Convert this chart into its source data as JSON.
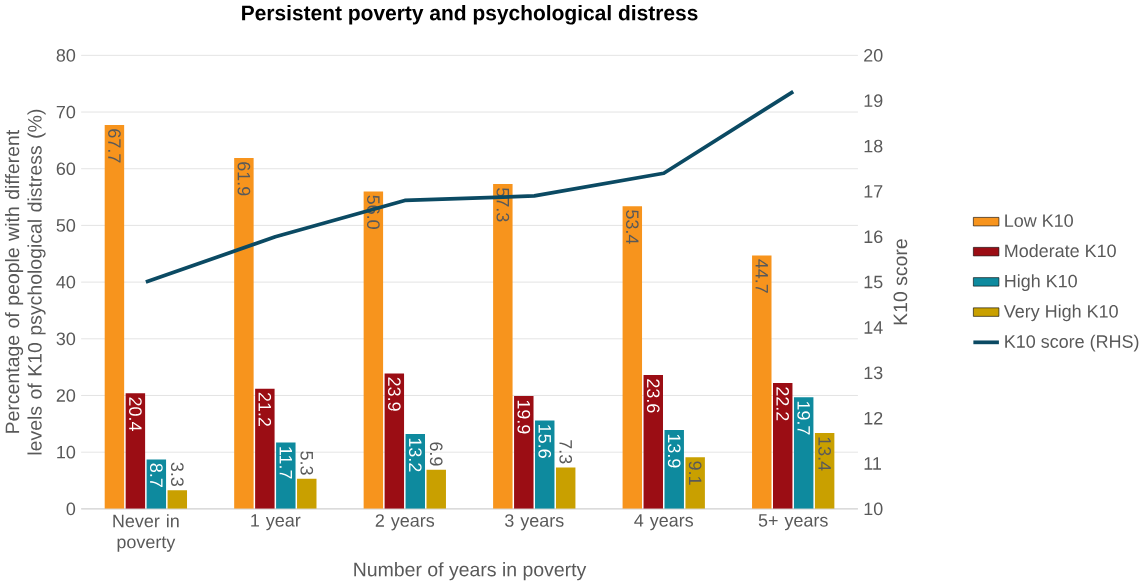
{
  "chart_data": {
    "type": "bar",
    "title": "Persistent poverty and psychological distress",
    "xlabel": "Number of years in poverty",
    "ylabel": "Percentage of people with different levels of K10 psychological distress (%)",
    "y2label": "K10 score",
    "categories": [
      "Never in poverty",
      "1 year",
      "2 years",
      "3 years",
      "4 years",
      "5+ years"
    ],
    "series": [
      {
        "name": "Low K10",
        "color": "#f7941d",
        "values": [
          67.7,
          61.9,
          56.0,
          57.3,
          53.4,
          44.7
        ],
        "value_labels": [
          "67.7",
          "61.9",
          "56.0",
          "57.3",
          "53.4",
          "44.7"
        ]
      },
      {
        "name": "Moderate K10",
        "color": "#9b0d14",
        "values": [
          20.4,
          21.2,
          23.9,
          19.9,
          23.6,
          22.2
        ],
        "value_labels": [
          "20.4",
          "21.2",
          "23.9",
          "19.9",
          "23.6",
          "22.2"
        ]
      },
      {
        "name": "High K10",
        "color": "#0e8a9e",
        "values": [
          8.7,
          11.7,
          13.2,
          15.6,
          13.9,
          19.7
        ],
        "value_labels": [
          "8.7",
          "11.7",
          "13.2",
          "15.6",
          "13.9",
          "19.7"
        ]
      },
      {
        "name": "Very High K10",
        "color": "#c9a000",
        "values": [
          3.3,
          5.3,
          6.9,
          7.3,
          9.1,
          13.4
        ],
        "value_labels": [
          "3.3",
          "5.3",
          "6.9",
          "7.3",
          "9.1",
          "13.4"
        ]
      },
      {
        "name": "K10 score (RHS)",
        "type": "line",
        "axis": "y2",
        "color": "#0b4a63",
        "values": [
          15.0,
          16.0,
          16.8,
          16.9,
          17.4,
          19.2
        ]
      }
    ],
    "grid": "y",
    "legend": "right",
    "ylim": [
      0,
      80
    ],
    "yticks": [
      0,
      10,
      20,
      30,
      40,
      50,
      60,
      70,
      80
    ],
    "y2lim": [
      10,
      20
    ],
    "y2ticks": [
      10,
      11,
      12,
      13,
      14,
      15,
      16,
      17,
      18,
      19,
      20
    ]
  }
}
